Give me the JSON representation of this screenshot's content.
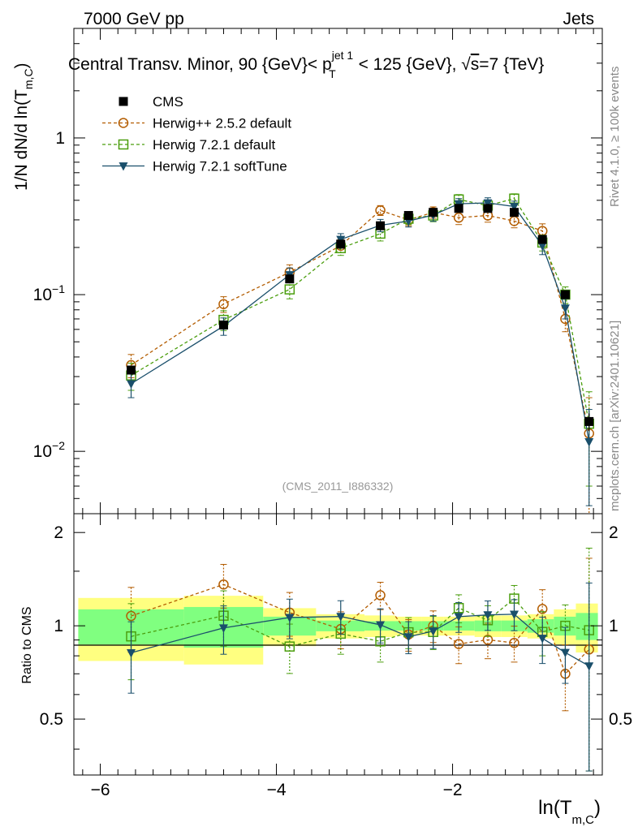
{
  "header": {
    "left": "7000 GeV pp",
    "right": "Jets"
  },
  "side_labels": {
    "rivet": "Rivet 4.1.0, ≥ 100k events",
    "mcplots": "mcplots.cern.ch [arXiv:2401.10621]"
  },
  "chart_data": {
    "type": "scatter",
    "title": {
      "pre": "Central Transv. Minor, 90 {GeV}< p",
      "sup": "jet 1",
      "sub": "T",
      "post1": " < 125 {GeV}, ",
      "sqrt": "√",
      "s": "s",
      "post2": "=7 {TeV}"
    },
    "watermark": "(CMS_2011_I886332)",
    "ylabel": {
      "main": "1/N    dN/d ln(T",
      "sub": "m,C",
      "close": ")"
    },
    "xlabel": {
      "main": "ln(T",
      "sub": "m,C",
      "close": ")"
    },
    "ratio_ylabel": "Ratio to CMS",
    "xlim": [
      -6.3,
      -0.3
    ],
    "ylim_log": [
      0.004,
      5
    ],
    "ratio_ylim": [
      0.33,
      2.3
    ],
    "x_ticks": [
      "−6",
      "−4",
      "−2"
    ],
    "x_tick_values": [
      -6,
      -4,
      -2
    ],
    "y_ticks": [
      {
        "value": 1,
        "base": "1",
        "exp": ""
      },
      {
        "value": 0.1,
        "base": "10",
        "exp": "−1"
      },
      {
        "value": 0.01,
        "base": "10",
        "exp": "−2"
      }
    ],
    "ratio_ticks": [
      {
        "value": 2,
        "label": "2"
      },
      {
        "value": 1,
        "label": "1"
      },
      {
        "value": 0.5,
        "label": "0.5"
      }
    ],
    "bins": [
      [
        -6.25,
        -5.05
      ],
      [
        -5.05,
        -4.15
      ],
      [
        -4.15,
        -3.55
      ],
      [
        -3.55,
        -3.0
      ],
      [
        -3.0,
        -2.65
      ],
      [
        -2.65,
        -2.35
      ],
      [
        -2.35,
        -2.1
      ],
      [
        -2.1,
        -1.75
      ],
      [
        -1.75,
        -1.45
      ],
      [
        -1.45,
        -1.15
      ],
      [
        -1.15,
        -0.85
      ],
      [
        -0.85,
        -0.6
      ],
      [
        -0.6,
        -0.35
      ]
    ],
    "band_inner": [
      0.13,
      0.15,
      0.07,
      0.04,
      0.035,
      0.035,
      0.035,
      0.035,
      0.04,
      0.04,
      0.05,
      0.07,
      0.1
    ],
    "band_outer": [
      0.23,
      0.25,
      0.14,
      0.09,
      0.08,
      0.07,
      0.07,
      0.07,
      0.08,
      0.08,
      0.09,
      0.13,
      0.18
    ],
    "x": [
      -5.65,
      -4.6,
      -3.85,
      -3.27,
      -2.82,
      -2.5,
      -2.22,
      -1.93,
      -1.6,
      -1.3,
      -0.98,
      -0.72,
      -0.45
    ],
    "series": [
      {
        "name": "CMS",
        "color": "#000000",
        "marker": "square-filled",
        "values": [
          0.033,
          0.064,
          0.126,
          0.21,
          0.275,
          0.32,
          0.335,
          0.355,
          0.355,
          0.335,
          0.225,
          0.1,
          0.0155
        ],
        "err": [
          0.002,
          0.004,
          0.008,
          0.012,
          0.015,
          0.017,
          0.018,
          0.02,
          0.02,
          0.02,
          0.014,
          0.006,
          0.002
        ]
      },
      {
        "name": "Herwig++ 2.5.2 default",
        "color": "#b35c00",
        "marker": "circle-open",
        "dashed": true,
        "values": [
          0.0355,
          0.087,
          0.139,
          0.205,
          0.345,
          0.3,
          0.335,
          0.31,
          0.32,
          0.295,
          0.255,
          0.07,
          0.013
        ],
        "err": [
          0.006,
          0.01,
          0.016,
          0.02,
          0.025,
          0.025,
          0.028,
          0.03,
          0.03,
          0.028,
          0.028,
          0.012,
          0.009
        ]
      },
      {
        "name": "Herwig 7.2.1 default",
        "color": "#4b9e0e",
        "marker": "square-open",
        "dashed": true,
        "values": [
          0.0305,
          0.069,
          0.108,
          0.198,
          0.245,
          0.305,
          0.32,
          0.405,
          0.37,
          0.41,
          0.215,
          0.1,
          0.015
        ],
        "err": [
          0.006,
          0.01,
          0.014,
          0.02,
          0.025,
          0.025,
          0.028,
          0.03,
          0.03,
          0.03,
          0.025,
          0.012,
          0.009
        ]
      },
      {
        "name": "Herwig 7.2.1 softTune",
        "color": "#1a4f6b",
        "marker": "triangle-down",
        "dashed": false,
        "values": [
          0.027,
          0.063,
          0.134,
          0.225,
          0.277,
          0.295,
          0.322,
          0.38,
          0.385,
          0.365,
          0.205,
          0.082,
          0.0115
        ],
        "err": [
          0.005,
          0.008,
          0.014,
          0.02,
          0.025,
          0.025,
          0.028,
          0.03,
          0.03,
          0.03,
          0.025,
          0.012,
          0.007
        ]
      }
    ]
  }
}
